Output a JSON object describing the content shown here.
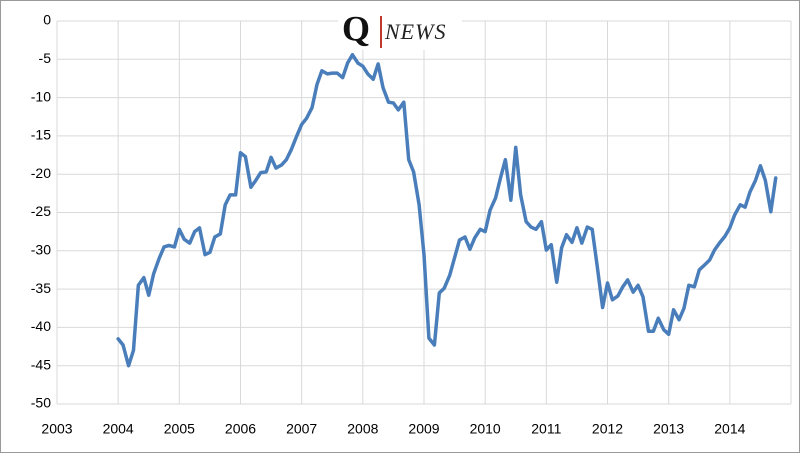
{
  "chart_data": {
    "type": "line",
    "logo": {
      "letter": "Q",
      "word": "NEWS"
    },
    "x": [
      2004.0,
      2004.08,
      2004.17,
      2004.25,
      2004.33,
      2004.42,
      2004.5,
      2004.58,
      2004.67,
      2004.75,
      2004.83,
      2004.92,
      2005.0,
      2005.08,
      2005.17,
      2005.25,
      2005.33,
      2005.42,
      2005.5,
      2005.58,
      2005.67,
      2005.75,
      2005.83,
      2005.92,
      2006.0,
      2006.08,
      2006.17,
      2006.25,
      2006.33,
      2006.42,
      2006.5,
      2006.58,
      2006.67,
      2006.75,
      2006.83,
      2006.92,
      2007.0,
      2007.08,
      2007.17,
      2007.25,
      2007.33,
      2007.42,
      2007.5,
      2007.58,
      2007.67,
      2007.75,
      2007.83,
      2007.92,
      2008.0,
      2008.08,
      2008.17,
      2008.25,
      2008.33,
      2008.42,
      2008.5,
      2008.58,
      2008.67,
      2008.75,
      2008.83,
      2008.92,
      2009.0,
      2009.08,
      2009.17,
      2009.25,
      2009.33,
      2009.42,
      2009.5,
      2009.58,
      2009.67,
      2009.75,
      2009.83,
      2009.92,
      2010.0,
      2010.08,
      2010.17,
      2010.25,
      2010.33,
      2010.42,
      2010.5,
      2010.58,
      2010.67,
      2010.75,
      2010.83,
      2010.92,
      2011.0,
      2011.08,
      2011.17,
      2011.25,
      2011.33,
      2011.42,
      2011.5,
      2011.58,
      2011.67,
      2011.75,
      2011.83,
      2011.92,
      2012.0,
      2012.08,
      2012.17,
      2012.25,
      2012.33,
      2012.42,
      2012.5,
      2012.58,
      2012.67,
      2012.75,
      2012.83,
      2012.92,
      2013.0,
      2013.08,
      2013.17,
      2013.25,
      2013.33,
      2013.42,
      2013.5,
      2013.58,
      2013.67,
      2013.75,
      2013.83,
      2013.92,
      2014.0,
      2014.08,
      2014.17,
      2014.25,
      2014.33,
      2014.42,
      2014.5,
      2014.58,
      2014.67,
      2014.75
    ],
    "values": [
      -41.5,
      -42.3,
      -45,
      -43,
      -34.5,
      -33.5,
      -35.8,
      -33,
      -31,
      -29.5,
      -29.3,
      -29.5,
      -27.2,
      -28.5,
      -29,
      -27.5,
      -27,
      -30.5,
      -30.2,
      -28.2,
      -27.8,
      -24,
      -22.7,
      -22.7,
      -17.2,
      -17.7,
      -21.7,
      -20.8,
      -19.8,
      -19.7,
      -17.8,
      -19.2,
      -18.8,
      -18.1,
      -16.8,
      -15,
      -13.5,
      -12.7,
      -11.3,
      -8.3,
      -6.5,
      -6.9,
      -6.8,
      -6.8,
      -7.4,
      -5.5,
      -4.4,
      -5.5,
      -5.9,
      -6.9,
      -7.6,
      -5.6,
      -8.7,
      -10.6,
      -10.7,
      -11.6,
      -10.6,
      -18.1,
      -19.7,
      -24,
      -30.5,
      -41.4,
      -42.3,
      -35.5,
      -34.9,
      -33.2,
      -30.9,
      -28.6,
      -28.2,
      -29.8,
      -28.3,
      -27.2,
      -27.5,
      -24.7,
      -23.1,
      -20.5,
      -18.1,
      -23.4,
      -16.5,
      -22.7,
      -26.2,
      -26.9,
      -27.2,
      -26.2,
      -29.9,
      -29.2,
      -34.1,
      -29.6,
      -27.9,
      -28.9,
      -27,
      -29,
      -26.9,
      -27.2,
      -31.9,
      -37.4,
      -34.2,
      -36.4,
      -35.9,
      -34.7,
      -33.8,
      -35.4,
      -34.5,
      -36,
      -40.5,
      -40.5,
      -38.8,
      -40.3,
      -40.9,
      -37.7,
      -39,
      -37.5,
      -34.5,
      -34.7,
      -32.5,
      -31.9,
      -31.2,
      -29.9,
      -29,
      -28.1,
      -27,
      -25.3,
      -24,
      -24.3,
      -22.3,
      -20.8,
      -18.9,
      -20.8,
      -24.9,
      -20.5
    ],
    "color": "#4a7ebb",
    "xlim": [
      2003,
      2015
    ],
    "xticks": [
      2003,
      2004,
      2005,
      2006,
      2007,
      2008,
      2009,
      2010,
      2011,
      2012,
      2013,
      2014
    ],
    "ylim": [
      -50,
      0
    ],
    "yticks": [
      0,
      -5,
      -10,
      -15,
      -20,
      -25,
      -30,
      -35,
      -40,
      -45,
      -50
    ],
    "grid": true
  }
}
